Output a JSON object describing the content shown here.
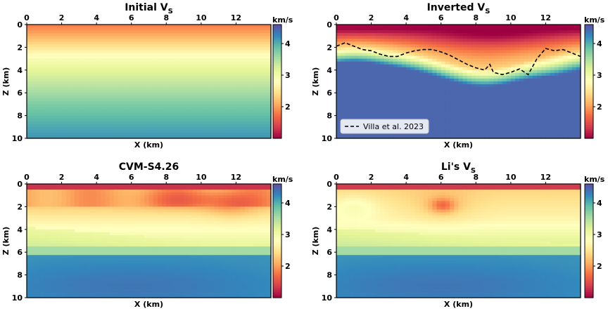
{
  "figure": {
    "cbar_unit": "km/s",
    "legend_label": "Villa et al. 2023"
  },
  "chart_data": [
    {
      "type": "heatmap",
      "title": "Initial V",
      "title_sub": "S",
      "xlabel": "X (km)",
      "ylabel": "Z (km)",
      "xlim": [
        0,
        14
      ],
      "ylim": [
        10,
        0
      ],
      "xticks": [
        0,
        2,
        4,
        6,
        8,
        10,
        12
      ],
      "yticks": [
        0,
        2,
        4,
        6,
        8,
        10
      ],
      "colorbar": {
        "label": "km/s",
        "ticks": [
          2,
          3,
          4
        ],
        "range": [
          1.0,
          4.6
        ],
        "colormap": "Spectral"
      },
      "model": "initial_smooth_1d",
      "profile_z": [
        0,
        1,
        2,
        3,
        4,
        5,
        6,
        7,
        8,
        9,
        10
      ],
      "profile_vs": [
        1.8,
        2.1,
        2.5,
        2.9,
        3.15,
        3.35,
        3.55,
        3.75,
        3.9,
        4.05,
        4.15
      ]
    },
    {
      "type": "heatmap",
      "title": "Inverted V",
      "title_sub": "S",
      "xlabel": "X (km)",
      "ylabel": "Z (km)",
      "xlim": [
        0,
        14
      ],
      "ylim": [
        10,
        0
      ],
      "xticks": [
        0,
        2,
        4,
        6,
        8,
        10,
        12
      ],
      "yticks": [
        0,
        2,
        4,
        6,
        8,
        10
      ],
      "colorbar": {
        "label": "km/s",
        "ticks": [
          2,
          3,
          4
        ],
        "range": [
          1.0,
          4.6
        ],
        "colormap": "Spectral"
      },
      "model": "inverted",
      "legend": [
        "Villa et al. 2023"
      ],
      "legend_position": "lower-left",
      "overlay_line": {
        "name": "Villa et al. 2023",
        "style": "dashed",
        "x": [
          0,
          0.5,
          1,
          1.5,
          2,
          2.5,
          3,
          3.5,
          4,
          4.5,
          5,
          5.5,
          6,
          6.5,
          7,
          7.5,
          8,
          8.5,
          8.8,
          9,
          9.5,
          10,
          10.5,
          11,
          11.5,
          12,
          12.5,
          13,
          13.5,
          14
        ],
        "y": [
          1.9,
          1.6,
          1.9,
          2.2,
          2.3,
          2.6,
          2.8,
          2.8,
          2.5,
          2.3,
          2.2,
          2.2,
          2.4,
          2.7,
          3.1,
          3.5,
          3.8,
          4.0,
          3.5,
          4.2,
          4.4,
          4.2,
          3.9,
          4.4,
          3.0,
          2.1,
          2.3,
          2.2,
          2.5,
          2.8
        ]
      }
    },
    {
      "type": "heatmap",
      "title": "CVM-S4.26",
      "xlabel": "X (km)",
      "ylabel": "Z (km)",
      "xlim": [
        0,
        14
      ],
      "ylim": [
        10,
        0
      ],
      "xticks": [
        0,
        2,
        4,
        6,
        8,
        10,
        12
      ],
      "yticks": [
        0,
        2,
        4,
        6,
        8,
        10
      ],
      "colorbar": {
        "label": "km/s",
        "ticks": [
          2,
          3,
          4
        ],
        "range": [
          1.0,
          4.6
        ],
        "colormap": "Spectral"
      },
      "model": "cvm"
    },
    {
      "type": "heatmap",
      "title": "Li's V",
      "title_sub": "S",
      "xlabel": "X (km)",
      "ylabel": "Z (km)",
      "xlim": [
        0,
        14
      ],
      "ylim": [
        10,
        0
      ],
      "xticks": [
        0,
        2,
        4,
        6,
        8,
        10,
        12
      ],
      "yticks": [
        0,
        2,
        4,
        6,
        8,
        10
      ],
      "colorbar": {
        "label": "km/s",
        "ticks": [
          2,
          3,
          4
        ],
        "range": [
          1.0,
          4.6
        ],
        "colormap": "Spectral"
      },
      "model": "li"
    }
  ]
}
